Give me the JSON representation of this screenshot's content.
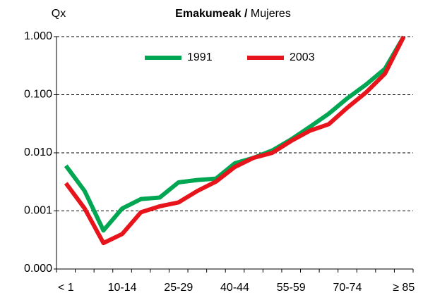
{
  "chart_data": {
    "type": "line",
    "title": {
      "bold": "Emakumeak /",
      "regular": "Mujeres"
    },
    "y_label": "Qx",
    "categories": [
      "< 1",
      null,
      null,
      "10-14",
      null,
      null,
      "25-29",
      null,
      null,
      "40-44",
      null,
      null,
      "55-59",
      null,
      null,
      "70-74",
      null,
      null,
      "≥ 85"
    ],
    "series": [
      {
        "name": "1991",
        "color": "#00a651",
        "values": [
          0.006,
          0.0022,
          0.00046,
          0.0011,
          0.0016,
          0.0017,
          0.0031,
          0.0034,
          0.0036,
          0.0066,
          0.0082,
          0.011,
          0.017,
          0.028,
          0.047,
          0.087,
          0.15,
          0.28,
          1.0
        ]
      },
      {
        "name": "2003",
        "color": "#e8141c",
        "values": [
          0.003,
          0.0011,
          0.00028,
          0.0004,
          0.00095,
          0.0012,
          0.0014,
          0.0022,
          0.0032,
          0.0057,
          0.0082,
          0.01,
          0.016,
          0.024,
          0.031,
          0.06,
          0.11,
          0.23,
          1.0
        ]
      }
    ],
    "ylim": [
      0.0001,
      1
    ],
    "log_y": true,
    "yticks": [
      {
        "value": 1,
        "label": "1.000"
      },
      {
        "value": 0.1,
        "label": "0.100"
      },
      {
        "value": 0.01,
        "label": "0.010"
      },
      {
        "value": 0.001,
        "label": "0.001"
      },
      {
        "value": 0.0001,
        "label": "0.000"
      }
    ],
    "grid": true,
    "legend": "top"
  }
}
